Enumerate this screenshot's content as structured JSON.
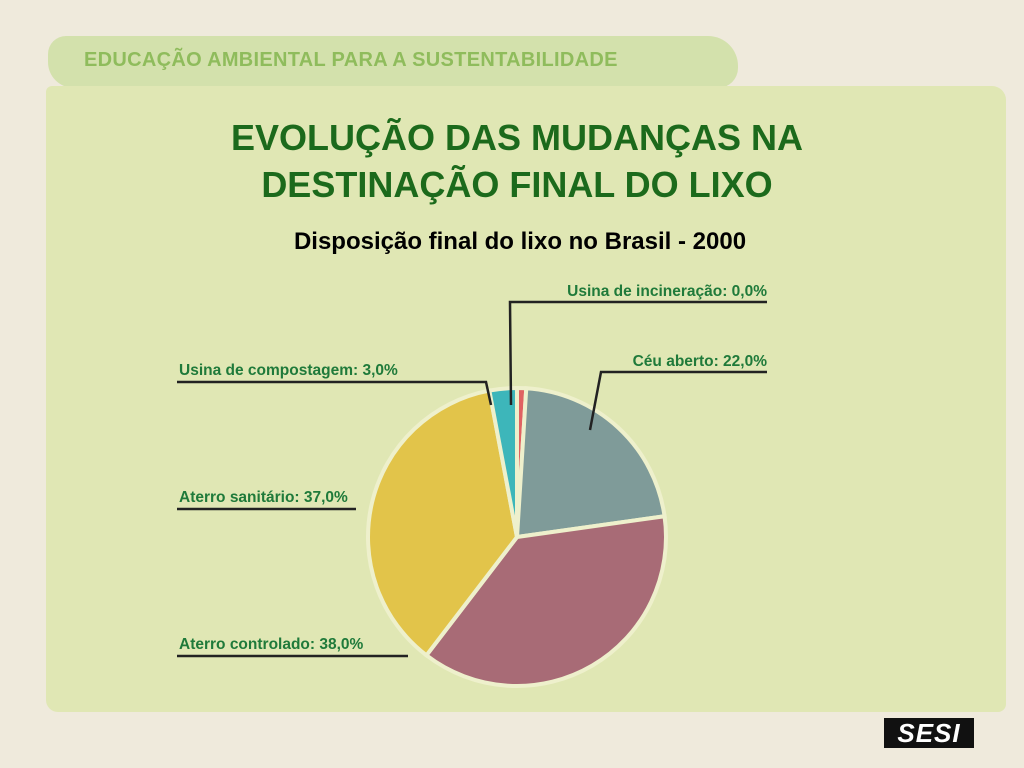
{
  "header": {
    "banner": "EDUCAÇÃO AMBIENTAL PARA A SUSTENTABILIDADE"
  },
  "slide": {
    "title_line1": "EVOLUÇÃO DAS MUDANÇAS NA",
    "title_line2": "DESTINAÇÃO FINAL DO LIXO"
  },
  "logo": "SESI",
  "chart_data": {
    "type": "pie",
    "title": "Disposição final do lixo no Brasil - 2000",
    "unit": "%",
    "slices": [
      {
        "label": "Usina de incineração: 0,0%",
        "name": "Usina de incineração",
        "value": 0.0,
        "color": "#e06262"
      },
      {
        "label": "Céu aberto: 22,0%",
        "name": "Céu aberto",
        "value": 22.0,
        "color": "#7f9b99"
      },
      {
        "label": "Aterro controlado: 38,0%",
        "name": "Aterro controlado",
        "value": 38.0,
        "color": "#a86b76"
      },
      {
        "label": "Aterro sanitário: 37,0%",
        "name": "Aterro sanitário",
        "value": 37.0,
        "color": "#e2c44a"
      },
      {
        "label": "Usina de compostagem: 3,0%",
        "name": "Usina de compostagem",
        "value": 3.0,
        "color": "#3db6ba"
      }
    ]
  }
}
